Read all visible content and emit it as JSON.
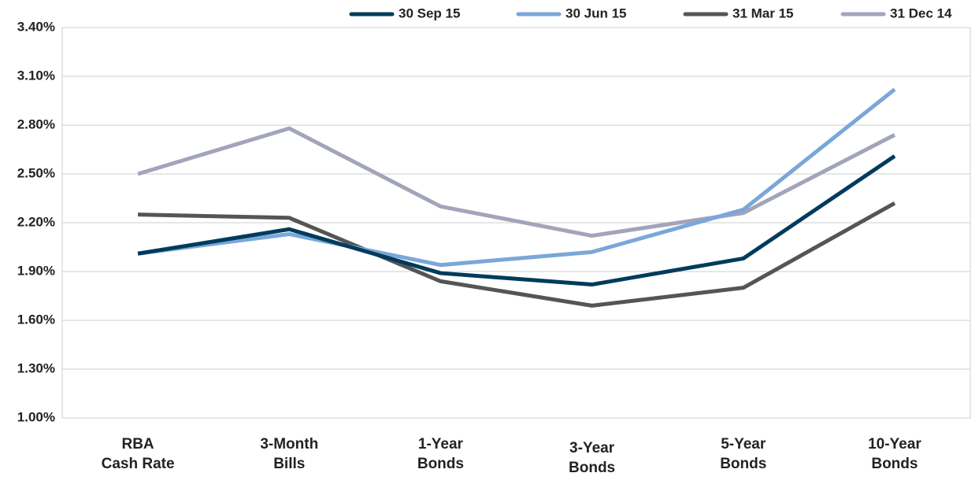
{
  "chart_data": {
    "type": "line",
    "categories": [
      "RBA\nCash Rate",
      "3-Month\nBills",
      "1-Year\nBonds",
      "3-Year\nBonds",
      "5-Year\nBonds",
      "10-Year\nBonds"
    ],
    "series": [
      {
        "name": "30 Sep 15",
        "color": "#003b5c",
        "values": [
          2.01,
          2.16,
          1.89,
          1.82,
          1.98,
          2.61
        ]
      },
      {
        "name": "30 Jun 15",
        "color": "#7aa7d9",
        "values": [
          2.01,
          2.13,
          1.94,
          2.02,
          2.28,
          3.02
        ]
      },
      {
        "name": "31 Mar 15",
        "color": "#555555",
        "values": [
          2.25,
          2.23,
          1.84,
          1.69,
          1.8,
          2.32
        ]
      },
      {
        "name": "31 Dec 14",
        "color": "#a2a5ba",
        "values": [
          2.5,
          2.78,
          2.3,
          2.12,
          2.26,
          2.74
        ]
      }
    ],
    "ylim": [
      1.0,
      3.4
    ],
    "yticks": [
      {
        "value": 1.0,
        "label": "1.00%"
      },
      {
        "value": 1.3,
        "label": "1.30%"
      },
      {
        "value": 1.6,
        "label": "1.60%"
      },
      {
        "value": 1.9,
        "label": "1.90%"
      },
      {
        "value": 2.2,
        "label": "2.20%"
      },
      {
        "value": 2.5,
        "label": "2.50%"
      },
      {
        "value": 2.8,
        "label": "2.80%"
      },
      {
        "value": 3.1,
        "label": "3.10%"
      },
      {
        "value": 3.4,
        "label": "3.40%"
      }
    ],
    "grid": true,
    "legend": "top-right"
  }
}
